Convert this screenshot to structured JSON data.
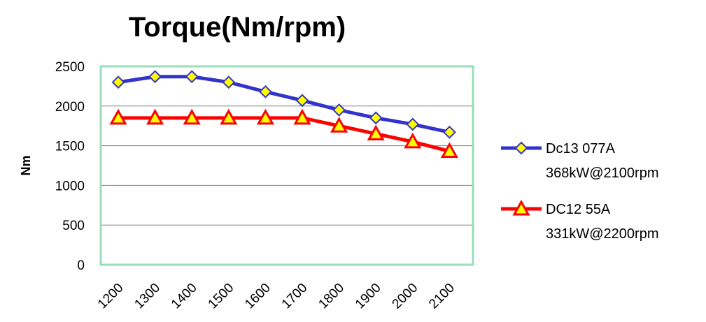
{
  "chart_data": {
    "type": "line",
    "title": "Torque(Nm/rpm)",
    "xlabel": "",
    "ylabel": "Nm",
    "categories": [
      "1200",
      "1300",
      "1400",
      "1500",
      "1600",
      "1700",
      "1800",
      "1900",
      "2000",
      "2100"
    ],
    "ylim": [
      0,
      2500
    ],
    "yticks": [
      0,
      500,
      1000,
      1500,
      2000,
      2500
    ],
    "grid": true,
    "legend_position": "right",
    "series": [
      {
        "name": "Dc13 077A",
        "name_line2": "368kW@2100rpm",
        "color": "#3333cc",
        "marker": "diamond",
        "marker_fill": "#ffff00",
        "values": [
          2300,
          2370,
          2370,
          2300,
          2180,
          2070,
          1950,
          1850,
          1770,
          1670
        ]
      },
      {
        "name": "DC12 55A",
        "name_line2": "331kW@2200rpm",
        "color": "#ff0000",
        "marker": "triangle",
        "marker_fill": "#ffff00",
        "values": [
          1850,
          1850,
          1850,
          1850,
          1850,
          1850,
          1750,
          1650,
          1550,
          1430
        ]
      }
    ]
  }
}
